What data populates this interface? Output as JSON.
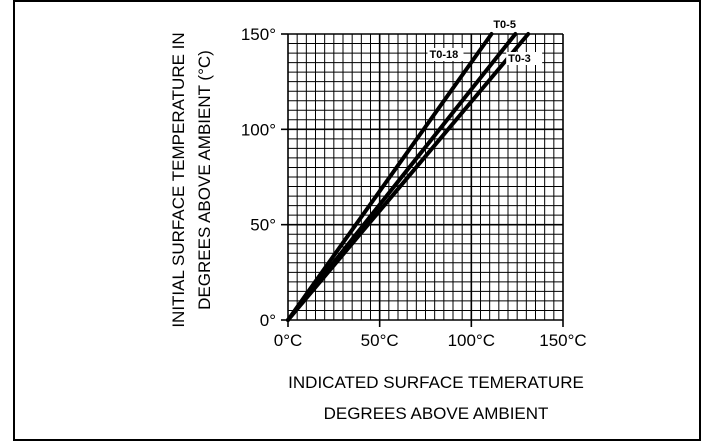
{
  "chart_data": {
    "type": "line",
    "xlabel_lines": [
      "INDICATED SURFACE TEMERATURE",
      "DEGREES ABOVE AMBIENT"
    ],
    "ylabel_lines": [
      "INITIAL SURFACE TEMPERATURE IN",
      "DEGREES ABOVE AMBIENT (°C)"
    ],
    "x_ticks": [
      {
        "value": 0,
        "label": "0°C"
      },
      {
        "value": 50,
        "label": "50°C"
      },
      {
        "value": 100,
        "label": "100°C"
      },
      {
        "value": 150,
        "label": "150°C"
      }
    ],
    "y_ticks": [
      {
        "value": 0,
        "label": "0°"
      },
      {
        "value": 50,
        "label": "50°"
      },
      {
        "value": 100,
        "label": "100°"
      },
      {
        "value": 150,
        "label": "150°"
      }
    ],
    "xlim": [
      0,
      150
    ],
    "ylim": [
      0,
      150
    ],
    "grid": true,
    "minor_grid_step": 5,
    "series": [
      {
        "name": "T0-18",
        "x": [
          0,
          111
        ],
        "y": [
          0,
          150
        ]
      },
      {
        "name": "T0-5",
        "x": [
          0,
          124
        ],
        "y": [
          0,
          150
        ]
      },
      {
        "name": "T0-3",
        "x": [
          0,
          131
        ],
        "y": [
          0,
          150
        ]
      }
    ],
    "colors": {
      "ink": "#000000",
      "background": "#ffffff"
    }
  }
}
